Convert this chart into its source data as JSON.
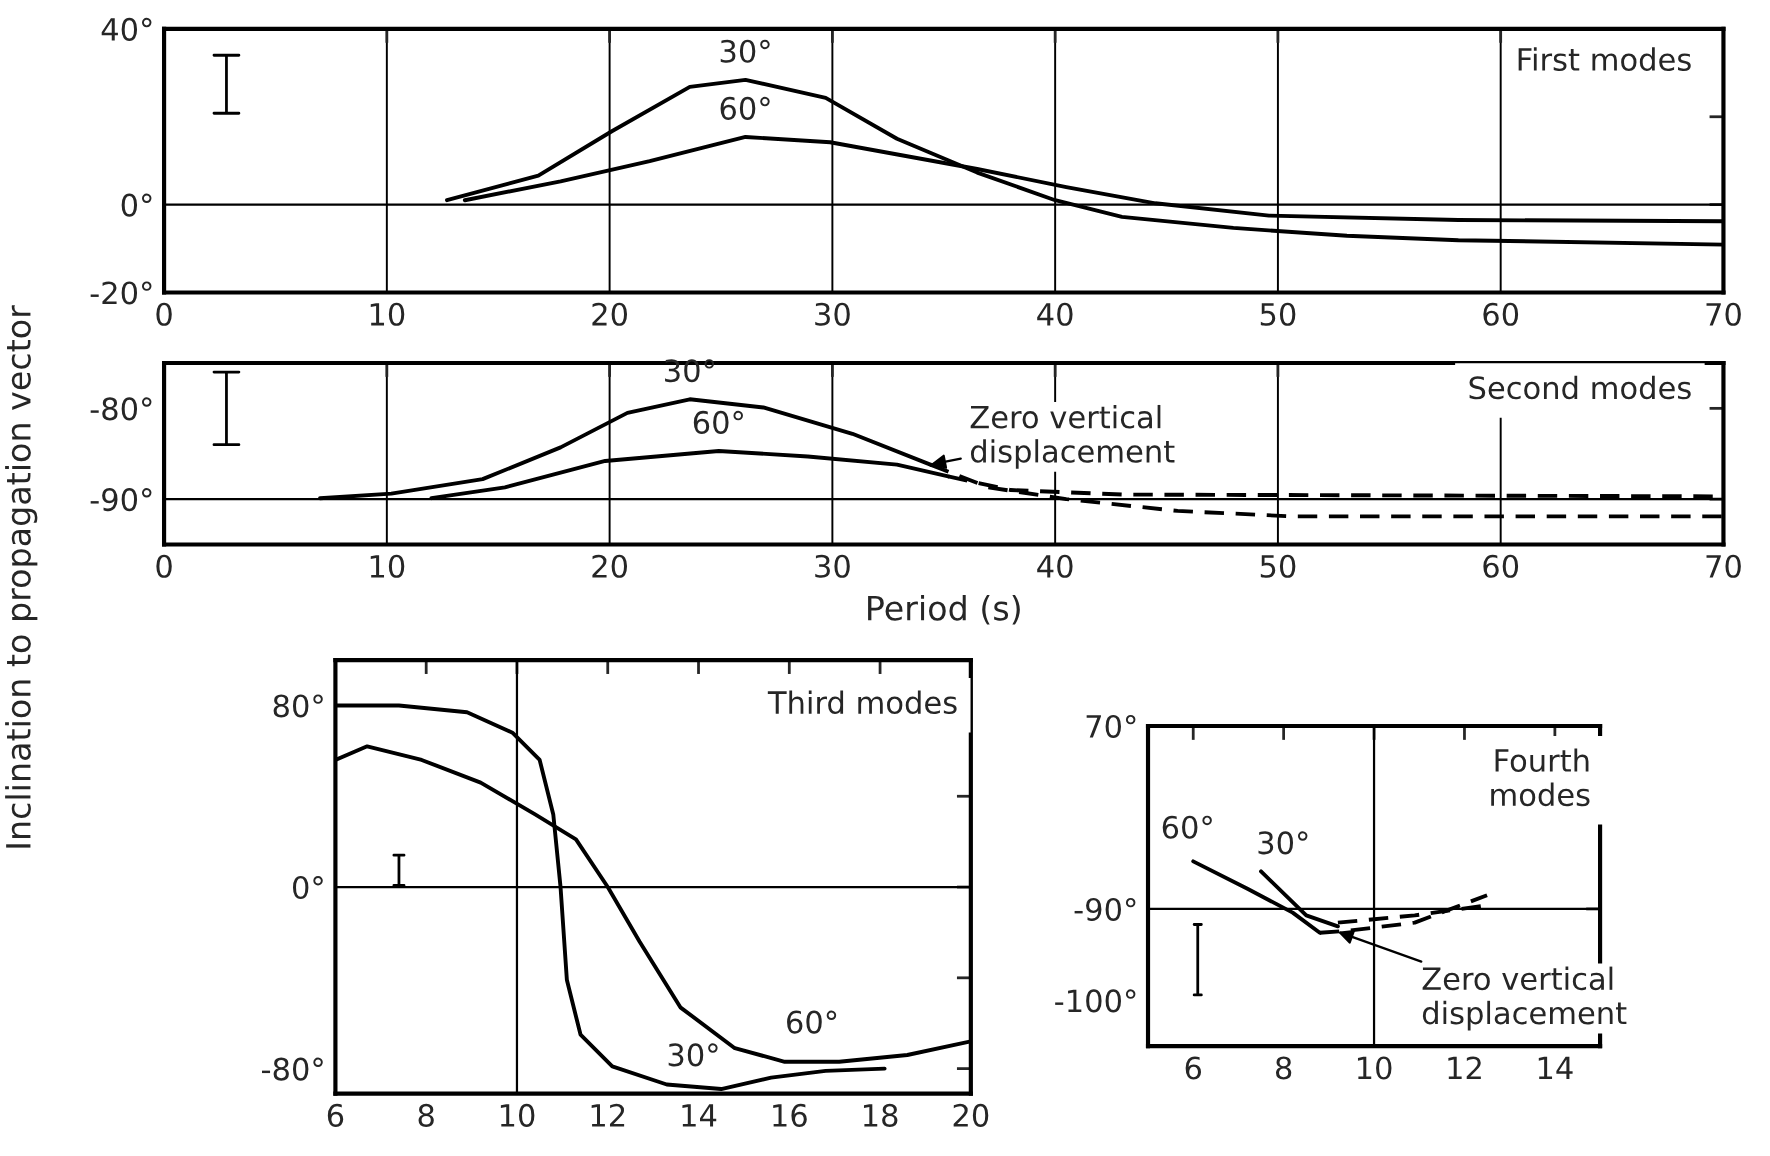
{
  "chart_data": [
    {
      "type": "line",
      "ylabel": "Inclination to propagation vector",
      "xlim": [
        0,
        70
      ],
      "ylim": [
        -20,
        40
      ],
      "xticks": [
        0,
        10,
        20,
        30,
        40,
        50,
        60,
        70
      ],
      "yticks": [
        {
          "value": 40,
          "label": "40°"
        },
        {
          "value": 20,
          "label": null
        },
        {
          "value": 0,
          "label": "0°"
        },
        {
          "value": -20,
          "label": "-20°"
        }
      ],
      "grid": "x",
      "ref_lines": [
        {
          "axis": "y",
          "value": 0,
          "label": null
        }
      ],
      "series": [
        {
          "color": "#000000",
          "line_style": "solid",
          "x": [
            12.7,
            16.8,
            20.1,
            23.6,
            26.1,
            29.7,
            32.9,
            36.5,
            40,
            43,
            48,
            53.1,
            58.1,
            70
          ],
          "values": [
            1,
            6.6,
            16.7,
            26.8,
            28.4,
            24.3,
            15,
            7.3,
            1,
            -2.8,
            -5.3,
            -7.1,
            -8.1,
            -9.1
          ]
        },
        {
          "color": "#000000",
          "line_style": "solid",
          "x": [
            13.5,
            17.8,
            21.8,
            26.1,
            29.9,
            36.5,
            40.5,
            44.5,
            49.6,
            58.1,
            70
          ],
          "values": [
            1,
            5.3,
            9.9,
            15.4,
            14.2,
            8.1,
            4,
            0.3,
            -2.5,
            -3.5,
            -3.8
          ]
        }
      ],
      "annotations": [
        {
          "text": "30°",
          "x": 26.1,
          "y": 28.4
        },
        {
          "text": "60°",
          "x": 26.1,
          "y": 15.4
        },
        "First modes"
      ]
    },
    {
      "type": "line",
      "xlabel": "Period (s)",
      "xlim": [
        0,
        70
      ],
      "ylim": [
        -95,
        -75
      ],
      "xticks": [
        0,
        10,
        20,
        30,
        40,
        50,
        60,
        70
      ],
      "yticks": [
        {
          "value": -80,
          "label": "-80°"
        },
        {
          "value": -90,
          "label": "-90°"
        }
      ],
      "grid": "x",
      "ref_lines": [
        {
          "axis": "y",
          "value": -90,
          "label": null
        }
      ],
      "series": [
        {
          "color": "#000000",
          "line_style": "solid",
          "x": [
            7,
            10.2,
            14.3,
            17.8,
            20.8,
            23.6,
            26.9,
            30.9,
            34.4
          ],
          "values": [
            -89.9,
            -89.4,
            -87.8,
            -84.3,
            -80.5,
            -79,
            -79.9,
            -82.8,
            -86.2
          ]
        },
        {
          "color": "#000000",
          "line_style": "dashed",
          "x": [
            34.4,
            37,
            40.5,
            45.5,
            50.6,
            70
          ],
          "values": [
            -86.2,
            -88.7,
            -90,
            -91.3,
            -91.9,
            -91.9
          ]
        },
        {
          "color": "#000000",
          "line_style": "solid",
          "x": [
            12,
            15.3,
            19.8,
            24.9,
            28.9,
            32.9,
            35.2
          ],
          "values": [
            -89.9,
            -88.7,
            -85.8,
            -84.7,
            -85.3,
            -86.2,
            -87.5
          ]
        },
        {
          "color": "#000000",
          "line_style": "dashed",
          "x": [
            35.2,
            38,
            43,
            70
          ],
          "values": [
            -87.5,
            -89,
            -89.5,
            -89.7
          ]
        }
      ],
      "annotations": [
        {
          "text": "30°",
          "x": 23.6,
          "y": -79
        },
        {
          "text": "60°",
          "x": 24.9,
          "y": -84.7
        },
        {
          "text": "Zero vertical\ndisplacement",
          "x": 34.4,
          "y": -86.2
        },
        "Second modes"
      ]
    },
    {
      "type": "line",
      "xlim": [
        6,
        20
      ],
      "ylim": [
        -91,
        100
      ],
      "xticks": [
        6,
        8,
        10,
        12,
        14,
        16,
        18,
        20
      ],
      "yticks": [
        {
          "value": 80,
          "label": "80°"
        },
        {
          "value": 40,
          "label": null
        },
        {
          "value": 0,
          "label": "0°"
        },
        {
          "value": -40,
          "label": null
        },
        {
          "value": -80,
          "label": "-80°"
        }
      ],
      "ref_lines": [
        {
          "axis": "y",
          "value": 0,
          "label": null
        },
        {
          "axis": "x",
          "value": 10,
          "label": null
        }
      ],
      "series": [
        {
          "color": "#000000",
          "line_style": "solid",
          "x": [
            6,
            7.4,
            8.9,
            9.9,
            10.5,
            10.8,
            10.96,
            11.1,
            11.4,
            12.1,
            13.3,
            14.5,
            15.6,
            16.8,
            18.1
          ],
          "values": [
            80,
            80,
            77,
            68,
            56,
            32,
            0,
            -41,
            -65,
            -79,
            -87,
            -89,
            -84,
            -81,
            -80
          ]
        },
        {
          "color": "#000000",
          "line_style": "solid",
          "x": [
            6,
            6.7,
            7.9,
            9.2,
            10.4,
            11.3,
            12,
            12.7,
            13.6,
            14.8,
            15.9,
            17.1,
            18.6,
            20
          ],
          "values": [
            56,
            62,
            56,
            46,
            32,
            21,
            0,
            -24,
            -53,
            -71,
            -77,
            -77,
            -74,
            -68
          ]
        }
      ],
      "annotations": [
        {
          "text": "30°",
          "x": 14.5,
          "y": -89
        },
        {
          "text": "60°",
          "x": 16.5,
          "y": -77
        },
        "Third modes"
      ]
    },
    {
      "type": "line",
      "xlim": [
        5,
        15
      ],
      "ylim": [
        -105,
        -70
      ],
      "xticks": [
        6,
        8,
        10,
        12,
        14
      ],
      "yticks": [
        {
          "value": -70,
          "label": "70°"
        },
        {
          "value": -80,
          "label": null
        },
        {
          "value": -90,
          "label": "-90°"
        },
        {
          "value": -100,
          "label": "-100°"
        }
      ],
      "ref_lines": [
        {
          "axis": "y",
          "value": -90,
          "label": null
        },
        {
          "axis": "x",
          "value": 10,
          "label": null
        }
      ],
      "series": [
        {
          "color": "#000000",
          "line_style": "solid",
          "x": [
            7.5,
            8.5,
            9.2
          ],
          "values": [
            -85.9,
            -90.7,
            -91.9
          ]
        },
        {
          "color": "#000000",
          "line_style": "dashed",
          "x": [
            9.2,
            10.9,
            12.5
          ],
          "values": [
            -91.5,
            -90.7,
            -89.6
          ]
        },
        {
          "color": "#000000",
          "line_style": "solid",
          "x": [
            6,
            7.2,
            8.2,
            8.8
          ],
          "values": [
            -84.8,
            -87.8,
            -90.4,
            -92.6
          ]
        },
        {
          "color": "#000000",
          "line_style": "dashed",
          "x": [
            8.8,
            9.4,
            10.9,
            12.5
          ],
          "values": [
            -92.6,
            -92.4,
            -91.5,
            -88.5
          ]
        }
      ],
      "annotations": [
        {
          "text": "30°",
          "x": 7.5,
          "y": -85.9
        },
        {
          "text": "60°",
          "x": 6,
          "y": -84.8
        },
        {
          "text": "Zero vertical\ndisplacement",
          "x": 9.2,
          "y": -92.5
        },
        "Fourth\nmodes"
      ]
    }
  ]
}
